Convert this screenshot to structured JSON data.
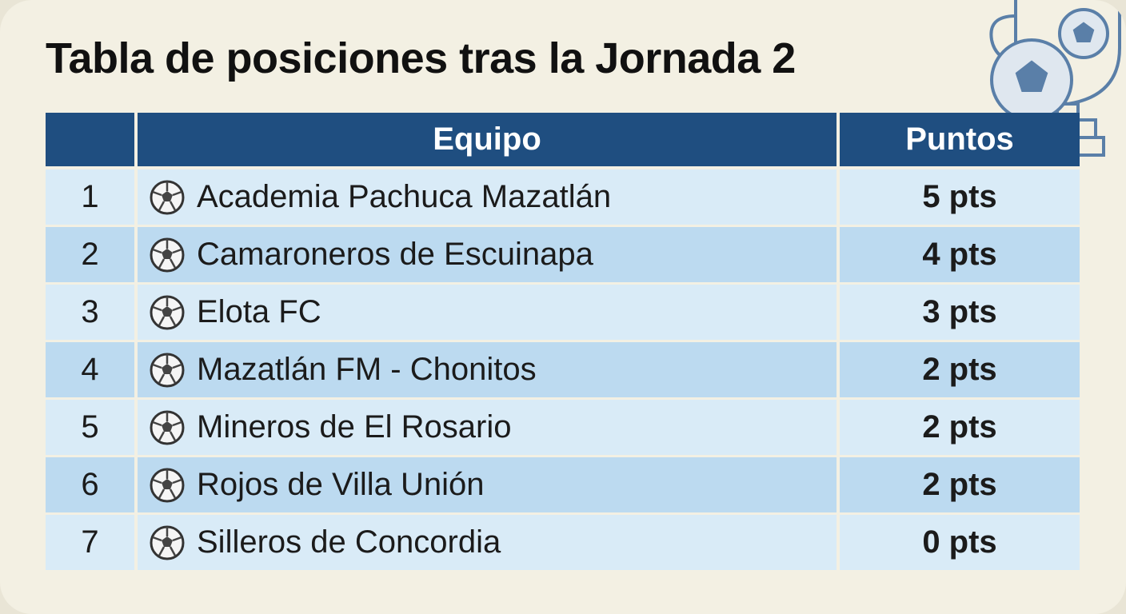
{
  "header": {
    "title": "Tabla de posiciones tras la Jornada 2"
  },
  "table": {
    "columns": [
      "Equipo",
      "Puntos"
    ],
    "rows": [
      [
        "1",
        "Academia Pachuca Mazatlán",
        "5 pts"
      ],
      [
        "2",
        "Camaroneros de Escuinapa",
        "4 pts"
      ],
      [
        "3",
        "Elota FC",
        "3 pts"
      ],
      [
        "4",
        "Mazatlán FM - Chonitos",
        "2 pts"
      ],
      [
        "5",
        "Mineros de El Rosario",
        "2 pts"
      ],
      [
        "6",
        "Rojos de Villa Unión",
        "2 pts"
      ],
      [
        "7",
        "Silleros de Concordia",
        "0 pts"
      ]
    ]
  }
}
